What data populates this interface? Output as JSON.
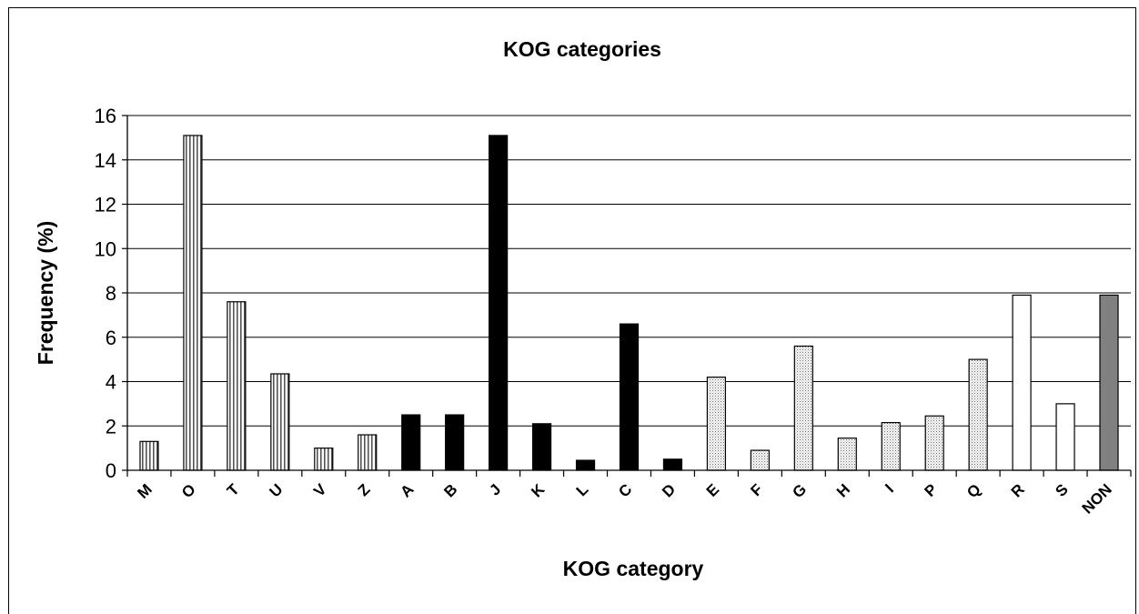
{
  "chart_data": {
    "type": "bar",
    "title": "KOG categories",
    "xlabel": "KOG category",
    "ylabel": "Frequency (%)",
    "ylim": [
      0,
      16
    ],
    "yticks": [
      0,
      2,
      4,
      6,
      8,
      10,
      12,
      14,
      16
    ],
    "grid": true,
    "categories": [
      "M",
      "O",
      "T",
      "U",
      "V",
      "Z",
      "A",
      "B",
      "J",
      "K",
      "L",
      "C",
      "D",
      "E",
      "F",
      "G",
      "H",
      "I",
      "P",
      "Q",
      "R",
      "S",
      "NON"
    ],
    "values": [
      1.3,
      15.1,
      7.6,
      4.35,
      1.0,
      1.6,
      2.5,
      2.5,
      15.1,
      2.1,
      0.45,
      6.6,
      0.5,
      4.2,
      0.9,
      5.6,
      1.45,
      2.15,
      2.45,
      5.0,
      7.9,
      3.0,
      7.9
    ],
    "bar_fills": [
      "vstripe",
      "vstripe",
      "vstripe",
      "vstripe",
      "vstripe",
      "vstripe",
      "black",
      "black",
      "black",
      "black",
      "black",
      "black",
      "black",
      "dots",
      "dots",
      "dots",
      "dots",
      "dots",
      "dots",
      "dots",
      "white",
      "white",
      "gray"
    ],
    "colors": {
      "black": "#000000",
      "gray": "#808080",
      "white": "#ffffff",
      "grid": "#000000"
    }
  }
}
